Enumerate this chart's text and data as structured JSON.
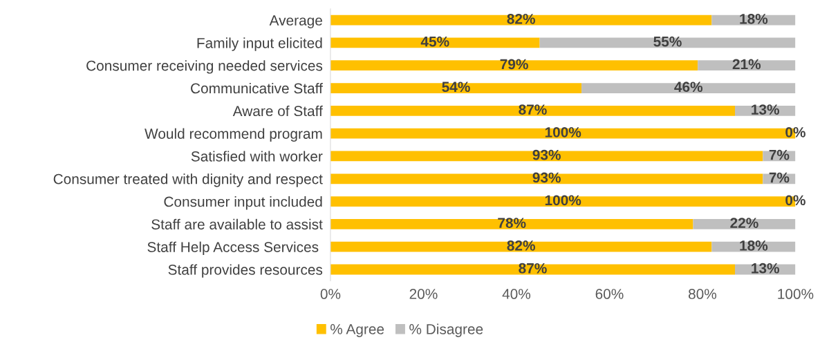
{
  "chart_data": {
    "type": "bar",
    "orientation": "horizontal",
    "stacked": true,
    "categories": [
      "Average",
      "Family input elicited",
      "Consumer receiving needed services",
      "Communicative Staff",
      "Aware of Staff",
      "Would recommend program",
      "Satisfied with worker",
      "Consumer treated with dignity and respect",
      "Consumer input included",
      "Staff are available to assist",
      "Staff Help Access Services ",
      "Staff provides resources"
    ],
    "series": [
      {
        "name": "% Agree",
        "color": "#ffc000",
        "values": [
          82,
          45,
          79,
          54,
          87,
          100,
          93,
          93,
          100,
          78,
          82,
          87
        ],
        "value_labels": [
          "82%",
          "45%",
          "79%",
          "54%",
          "87%",
          "100%",
          "93%",
          "93%",
          "100%",
          "78%",
          "82%",
          "87%"
        ]
      },
      {
        "name": "% Disagree",
        "color": "#bfbfbf",
        "values": [
          18,
          55,
          21,
          46,
          13,
          0,
          7,
          7,
          0,
          22,
          18,
          13
        ],
        "value_labels": [
          "18%",
          "55%",
          "21%",
          "46%",
          "13%",
          "0%",
          "7%",
          "7%",
          "0%",
          "22%",
          "18%",
          "13%"
        ]
      }
    ],
    "xlim": [
      0,
      100
    ],
    "xticks": [
      {
        "value": 0,
        "label": "0%"
      },
      {
        "value": 20,
        "label": "20%"
      },
      {
        "value": 40,
        "label": "40%"
      },
      {
        "value": 60,
        "label": "60%"
      },
      {
        "value": 80,
        "label": "80%"
      },
      {
        "value": 100,
        "label": "100%"
      }
    ],
    "grid": false,
    "legend": "bottom"
  }
}
